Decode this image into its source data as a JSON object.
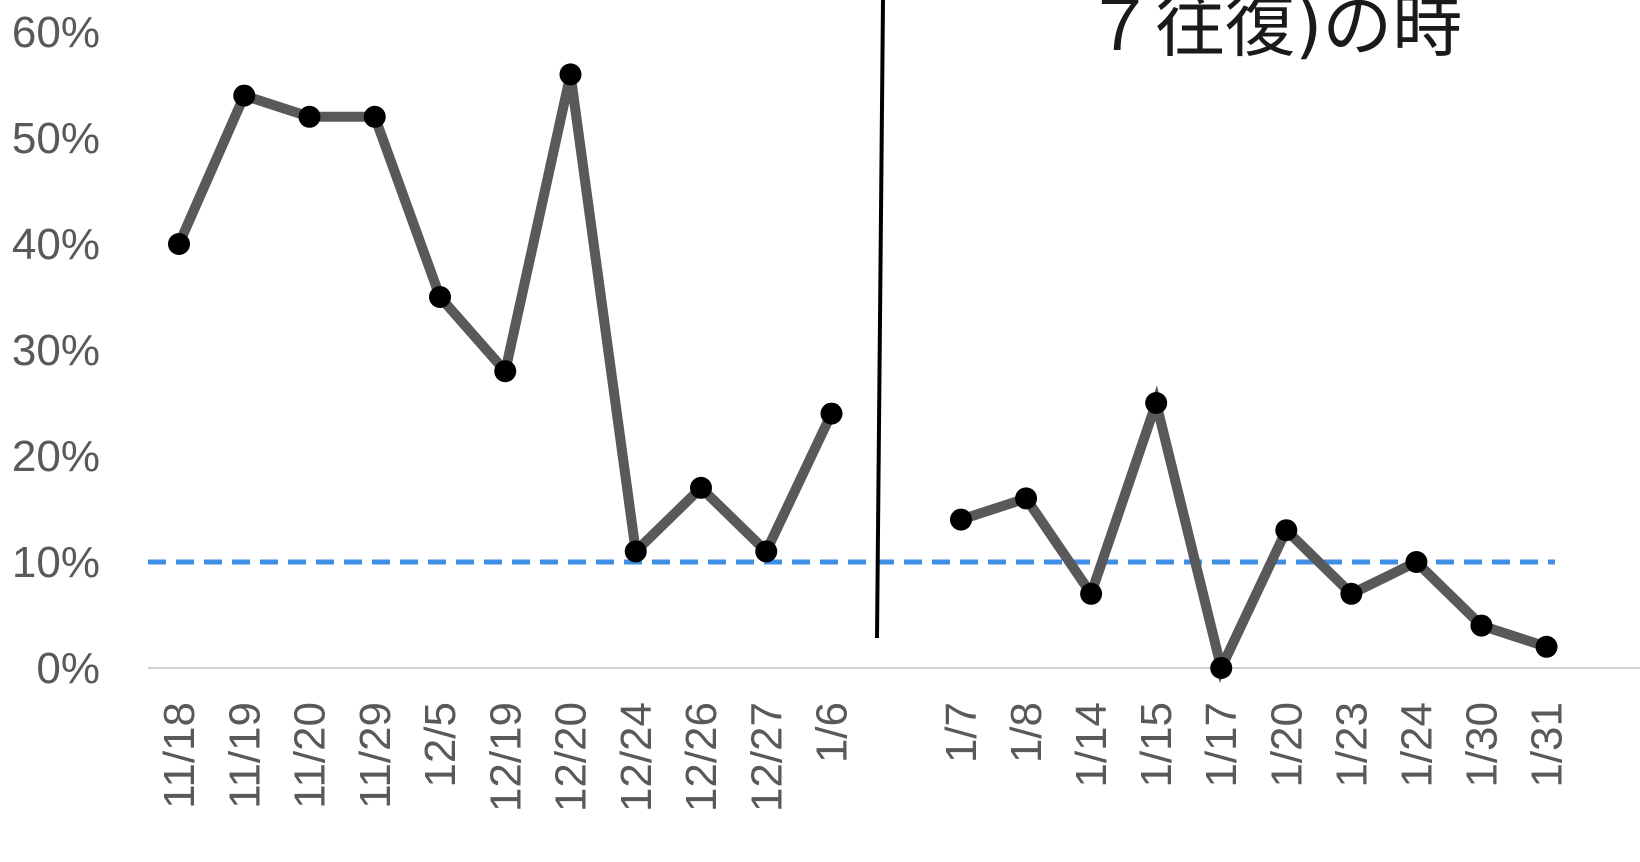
{
  "chart_data": {
    "type": "line",
    "title_fragment": "７往復)の時",
    "ylim": [
      0,
      0.6
    ],
    "yticks": [
      "0%",
      "10%",
      "20%",
      "30%",
      "40%",
      "50%",
      "60%"
    ],
    "grid": false,
    "legend": "none",
    "reference_line": {
      "value": 0.1,
      "style": "dashed",
      "color": "#3f8fe6"
    },
    "divider_between": [
      "1/6",
      "1/7"
    ],
    "series": [
      {
        "color": "#595959",
        "segments": [
          {
            "categories": [
              "11/18",
              "11/19",
              "11/20",
              "11/29",
              "12/5",
              "12/19",
              "12/20",
              "12/24",
              "12/26",
              "12/27",
              "1/6"
            ],
            "values": [
              0.4,
              0.54,
              0.52,
              0.52,
              0.35,
              0.28,
              0.56,
              0.11,
              0.17,
              0.11,
              0.24
            ]
          },
          {
            "categories": [
              "1/7",
              "1/8",
              "1/14",
              "1/15",
              "1/17",
              "1/20",
              "1/23",
              "1/24",
              "1/30",
              "1/31"
            ],
            "values": [
              0.14,
              0.16,
              0.07,
              0.25,
              0.0,
              0.13,
              0.07,
              0.1,
              0.04,
              0.02
            ]
          }
        ]
      }
    ],
    "colors": {
      "line": "#595959",
      "marker": "#000000",
      "axis": "#d0d0d0",
      "divider": "#000000",
      "reference": "#3f8fe6",
      "text": "#595959"
    }
  }
}
